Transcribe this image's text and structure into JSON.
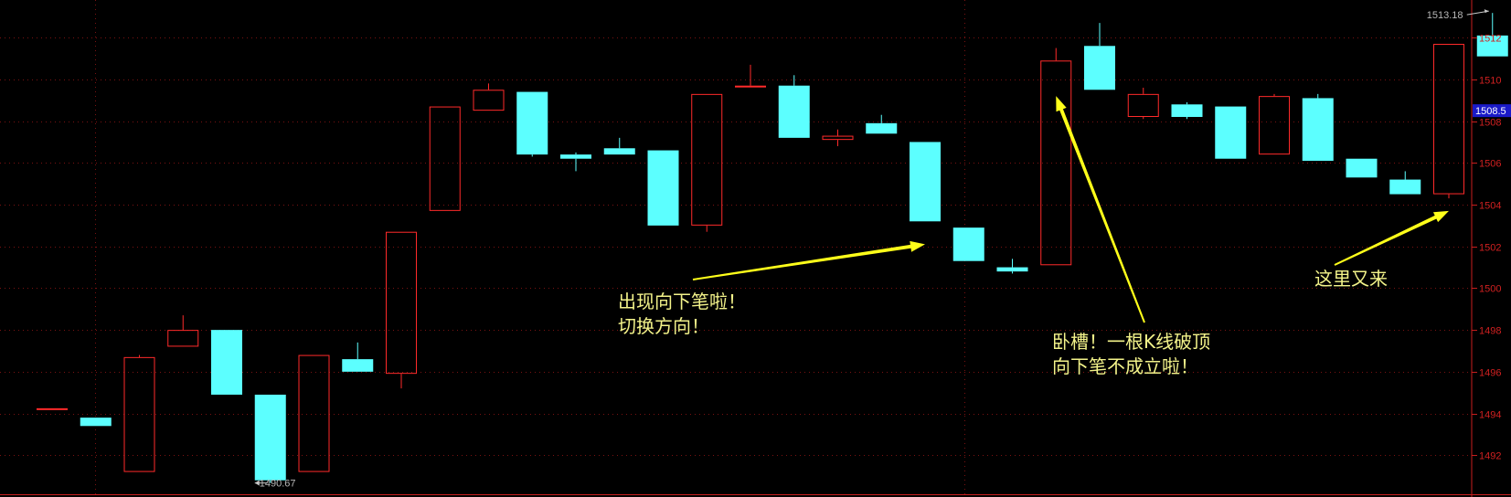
{
  "chart_data": {
    "type": "candlestick",
    "ylim": [
      1490,
      1513.8
    ],
    "y_ticks": [
      {
        "value": 1492,
        "label": "1492"
      },
      {
        "value": 1494,
        "label": "1494"
      },
      {
        "value": 1496,
        "label": "1496"
      },
      {
        "value": 1498,
        "label": "1498"
      },
      {
        "value": 1500,
        "label": "1500"
      },
      {
        "value": 1502,
        "label": "1502"
      },
      {
        "value": 1504,
        "label": "1504"
      },
      {
        "value": 1506,
        "label": "1506"
      },
      {
        "value": 1508,
        "label": "1508"
      },
      {
        "value": 1510,
        "label": "1510"
      },
      {
        "value": 1512,
        "label": "1512"
      }
    ],
    "current_price": {
      "value": 1508.5,
      "label": "1508.5"
    },
    "high_marker": {
      "value": 1513.18,
      "label": "1513.18",
      "index": 33
    },
    "low_marker": {
      "value": 1490.67,
      "label": "1490.67",
      "index": 5
    },
    "candles": [
      {
        "open": 1494.25,
        "close": 1494.25,
        "high": 1494.25,
        "low": 1494.25
      },
      {
        "open": 1493.8,
        "close": 1493.4,
        "high": 1493.8,
        "low": 1493.4
      },
      {
        "open": 1491.2,
        "close": 1496.7,
        "high": 1496.8,
        "low": 1491.2
      },
      {
        "open": 1497.2,
        "close": 1498.0,
        "high": 1498.7,
        "low": 1497.2
      },
      {
        "open": 1498.0,
        "close": 1494.9,
        "high": 1498.0,
        "low": 1494.9
      },
      {
        "open": 1494.9,
        "close": 1490.8,
        "high": 1494.9,
        "low": 1490.67
      },
      {
        "open": 1491.2,
        "close": 1496.8,
        "high": 1496.8,
        "low": 1491.2
      },
      {
        "open": 1496.6,
        "close": 1496.0,
        "high": 1497.4,
        "low": 1496.0
      },
      {
        "open": 1495.9,
        "close": 1502.7,
        "high": 1502.7,
        "low": 1495.2
      },
      {
        "open": 1503.7,
        "close": 1508.7,
        "high": 1508.7,
        "low": 1503.7
      },
      {
        "open": 1508.5,
        "close": 1509.5,
        "high": 1509.8,
        "low": 1508.5
      },
      {
        "open": 1509.4,
        "close": 1506.4,
        "high": 1509.4,
        "low": 1506.3
      },
      {
        "open": 1506.4,
        "close": 1506.2,
        "high": 1506.5,
        "low": 1505.6
      },
      {
        "open": 1506.7,
        "close": 1506.4,
        "high": 1507.2,
        "low": 1506.4
      },
      {
        "open": 1506.6,
        "close": 1503.0,
        "high": 1506.6,
        "low": 1503.0
      },
      {
        "open": 1503.0,
        "close": 1509.3,
        "high": 1509.3,
        "low": 1502.7
      },
      {
        "open": 1509.7,
        "close": 1509.7,
        "high": 1510.7,
        "low": 1509.7
      },
      {
        "open": 1509.7,
        "close": 1507.2,
        "high": 1510.2,
        "low": 1507.2
      },
      {
        "open": 1507.1,
        "close": 1507.3,
        "high": 1507.6,
        "low": 1506.8
      },
      {
        "open": 1507.9,
        "close": 1507.4,
        "high": 1508.3,
        "low": 1507.4
      },
      {
        "open": 1507.0,
        "close": 1503.2,
        "high": 1507.0,
        "low": 1503.2
      },
      {
        "open": 1502.9,
        "close": 1501.3,
        "high": 1502.9,
        "low": 1501.3
      },
      {
        "open": 1501.0,
        "close": 1500.8,
        "high": 1501.4,
        "low": 1500.7
      },
      {
        "open": 1501.1,
        "close": 1510.9,
        "high": 1511.5,
        "low": 1501.1
      },
      {
        "open": 1511.6,
        "close": 1509.5,
        "high": 1512.7,
        "low": 1509.5
      },
      {
        "open": 1508.2,
        "close": 1509.3,
        "high": 1509.6,
        "low": 1508.1
      },
      {
        "open": 1508.8,
        "close": 1508.2,
        "high": 1508.9,
        "low": 1508.1
      },
      {
        "open": 1508.7,
        "close": 1506.2,
        "high": 1508.7,
        "low": 1506.2
      },
      {
        "open": 1506.4,
        "close": 1509.2,
        "high": 1509.3,
        "low": 1506.4
      },
      {
        "open": 1509.1,
        "close": 1506.1,
        "high": 1509.3,
        "low": 1506.1
      },
      {
        "open": 1506.2,
        "close": 1505.3,
        "high": 1506.2,
        "low": 1505.3
      },
      {
        "open": 1505.2,
        "close": 1504.5,
        "high": 1505.6,
        "low": 1504.5
      },
      {
        "open": 1504.5,
        "close": 1511.7,
        "high": 1511.7,
        "low": 1504.3
      },
      {
        "open": 1512.1,
        "close": 1511.1,
        "high": 1513.18,
        "low": 1511.1
      }
    ],
    "annotations": [
      {
        "lines": [
          "出现向下笔啦！",
          "切换方向！"
        ],
        "arrow_to_index": 20,
        "arrow_to_value": 1502.1
      },
      {
        "lines": [
          "卧槽！一根K线破顶",
          "向下笔不成立啦！"
        ],
        "arrow_to_index": 23,
        "arrow_to_value": 1509.2
      },
      {
        "lines": [
          "这里又来"
        ],
        "arrow_to_index": 32,
        "arrow_to_value": 1503.7
      }
    ],
    "colors": {
      "up": "#ff2a2a",
      "down": "#5cffff",
      "axis": "#c81e1e",
      "grid": "#7a1212",
      "annotation_text": "#f3f38a",
      "arrow": "#ffff1a",
      "current_price_bg": "#1a1ac8"
    }
  }
}
